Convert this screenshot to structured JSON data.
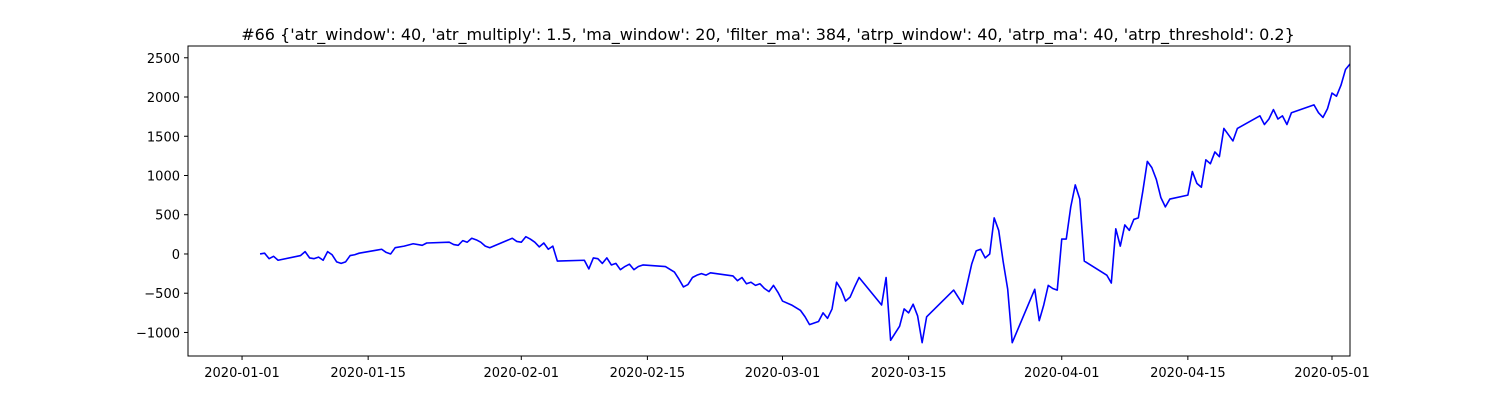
{
  "chart_data": {
    "type": "line",
    "title": "#66 {'atr_window': 40, 'atr_multiply': 1.5, 'ma_window': 20, 'filter_ma': 384, 'atrp_window': 40, 'atrp_ma': 40, 'atrp_threshold': 0.2}",
    "xlabel": "",
    "ylabel": "",
    "x_type": "date",
    "xlim": [
      "2019-12-26",
      "2020-05-03"
    ],
    "ylim": [
      -1300,
      2650
    ],
    "x_ticks": [
      "2020-01-01",
      "2020-01-15",
      "2020-02-01",
      "2020-02-15",
      "2020-03-01",
      "2020-03-15",
      "2020-04-01",
      "2020-04-15",
      "2020-05-01"
    ],
    "y_ticks": [
      -1000,
      -500,
      0,
      500,
      1000,
      1500,
      2000,
      2500
    ],
    "grid": false,
    "legend": "none",
    "series": [
      {
        "color": "#0000ff",
        "points": [
          [
            "2020-01-03",
            0
          ],
          [
            "2020-01-03 12:00",
            10
          ],
          [
            "2020-01-04",
            -60
          ],
          [
            "2020-01-04 12:00",
            -30
          ],
          [
            "2020-01-05",
            -80
          ],
          [
            "2020-01-07 12:00",
            -20
          ],
          [
            "2020-01-08",
            30
          ],
          [
            "2020-01-08 12:00",
            -50
          ],
          [
            "2020-01-09",
            -60
          ],
          [
            "2020-01-09 12:00",
            -40
          ],
          [
            "2020-01-10",
            -80
          ],
          [
            "2020-01-10 12:00",
            30
          ],
          [
            "2020-01-11",
            -10
          ],
          [
            "2020-01-11 12:00",
            -100
          ],
          [
            "2020-01-12",
            -120
          ],
          [
            "2020-01-12 12:00",
            -100
          ],
          [
            "2020-01-13",
            -20
          ],
          [
            "2020-01-13 12:00",
            -10
          ],
          [
            "2020-01-14",
            10
          ],
          [
            "2020-01-16",
            50
          ],
          [
            "2020-01-16 12:00",
            60
          ],
          [
            "2020-01-17",
            20
          ],
          [
            "2020-01-17 12:00",
            0
          ],
          [
            "2020-01-18",
            80
          ],
          [
            "2020-01-19",
            100
          ],
          [
            "2020-01-20",
            130
          ],
          [
            "2020-01-21",
            110
          ],
          [
            "2020-01-21 12:00",
            140
          ],
          [
            "2020-01-24",
            150
          ],
          [
            "2020-01-24 12:00",
            120
          ],
          [
            "2020-01-25",
            110
          ],
          [
            "2020-01-25 12:00",
            170
          ],
          [
            "2020-01-26",
            150
          ],
          [
            "2020-01-26 12:00",
            200
          ],
          [
            "2020-01-27",
            180
          ],
          [
            "2020-01-27 12:00",
            150
          ],
          [
            "2020-01-28",
            100
          ],
          [
            "2020-01-28 12:00",
            80
          ],
          [
            "2020-01-31",
            200
          ],
          [
            "2020-01-31 12:00",
            160
          ],
          [
            "2020-02-01",
            150
          ],
          [
            "2020-02-01 12:00",
            220
          ],
          [
            "2020-02-02",
            190
          ],
          [
            "2020-02-02 12:00",
            150
          ],
          [
            "2020-02-03",
            90
          ],
          [
            "2020-02-03 12:00",
            140
          ],
          [
            "2020-02-04",
            60
          ],
          [
            "2020-02-04 12:00",
            100
          ],
          [
            "2020-02-05",
            -90
          ],
          [
            "2020-02-08",
            -80
          ],
          [
            "2020-02-08 12:00",
            -190
          ],
          [
            "2020-02-09",
            -50
          ],
          [
            "2020-02-09 12:00",
            -60
          ],
          [
            "2020-02-10",
            -120
          ],
          [
            "2020-02-10 12:00",
            -50
          ],
          [
            "2020-02-11",
            -140
          ],
          [
            "2020-02-11 12:00",
            -120
          ],
          [
            "2020-02-12",
            -200
          ],
          [
            "2020-02-12 12:00",
            -160
          ],
          [
            "2020-02-13",
            -130
          ],
          [
            "2020-02-13 12:00",
            -200
          ],
          [
            "2020-02-14",
            -160
          ],
          [
            "2020-02-14 12:00",
            -140
          ],
          [
            "2020-02-17",
            -160
          ],
          [
            "2020-02-18",
            -230
          ],
          [
            "2020-02-18 12:00",
            -320
          ],
          [
            "2020-02-19",
            -420
          ],
          [
            "2020-02-19 12:00",
            -390
          ],
          [
            "2020-02-20",
            -300
          ],
          [
            "2020-02-20 12:00",
            -270
          ],
          [
            "2020-02-21",
            -250
          ],
          [
            "2020-02-21 12:00",
            -270
          ],
          [
            "2020-02-22",
            -240
          ],
          [
            "2020-02-24 12:00",
            -280
          ],
          [
            "2020-02-25",
            -340
          ],
          [
            "2020-02-25 12:00",
            -300
          ],
          [
            "2020-02-26",
            -380
          ],
          [
            "2020-02-26 12:00",
            -360
          ],
          [
            "2020-02-27",
            -400
          ],
          [
            "2020-02-27 12:00",
            -380
          ],
          [
            "2020-02-28",
            -440
          ],
          [
            "2020-02-28 12:00",
            -480
          ],
          [
            "2020-02-29",
            -400
          ],
          [
            "2020-02-29 12:00",
            -490
          ],
          [
            "2020-03-01",
            -600
          ],
          [
            "2020-03-02",
            -650
          ],
          [
            "2020-03-03",
            -720
          ],
          [
            "2020-03-03 12:00",
            -800
          ],
          [
            "2020-03-04",
            -900
          ],
          [
            "2020-03-05",
            -860
          ],
          [
            "2020-03-05 12:00",
            -750
          ],
          [
            "2020-03-06",
            -820
          ],
          [
            "2020-03-06 12:00",
            -700
          ],
          [
            "2020-03-07",
            -360
          ],
          [
            "2020-03-07 12:00",
            -450
          ],
          [
            "2020-03-08",
            -600
          ],
          [
            "2020-03-08 12:00",
            -550
          ],
          [
            "2020-03-09",
            -420
          ],
          [
            "2020-03-09 12:00",
            -300
          ],
          [
            "2020-03-12",
            -650
          ],
          [
            "2020-03-12 12:00",
            -300
          ],
          [
            "2020-03-13",
            -1100
          ],
          [
            "2020-03-14",
            -920
          ],
          [
            "2020-03-14 12:00",
            -700
          ],
          [
            "2020-03-15",
            -750
          ],
          [
            "2020-03-15 12:00",
            -640
          ],
          [
            "2020-03-16",
            -790
          ],
          [
            "2020-03-16 12:00",
            -1130
          ],
          [
            "2020-03-17",
            -800
          ],
          [
            "2020-03-20",
            -460
          ],
          [
            "2020-03-21",
            -640
          ],
          [
            "2020-03-22",
            -130
          ],
          [
            "2020-03-22 12:00",
            40
          ],
          [
            "2020-03-23",
            60
          ],
          [
            "2020-03-23 12:00",
            -50
          ],
          [
            "2020-03-24",
            0
          ],
          [
            "2020-03-24 12:00",
            460
          ],
          [
            "2020-03-25",
            300
          ],
          [
            "2020-03-25 12:00",
            -100
          ],
          [
            "2020-03-26",
            -450
          ],
          [
            "2020-03-26 12:00",
            -1130
          ],
          [
            "2020-03-29",
            -450
          ],
          [
            "2020-03-29 12:00",
            -850
          ],
          [
            "2020-03-30",
            -650
          ],
          [
            "2020-03-30 12:00",
            -400
          ],
          [
            "2020-03-31",
            -440
          ],
          [
            "2020-03-31 12:00",
            -460
          ],
          [
            "2020-04-01",
            190
          ],
          [
            "2020-04-01 12:00",
            190
          ],
          [
            "2020-04-02",
            600
          ],
          [
            "2020-04-02 12:00",
            880
          ],
          [
            "2020-04-03",
            700
          ],
          [
            "2020-04-03 12:00",
            -90
          ],
          [
            "2020-04-06",
            -270
          ],
          [
            "2020-04-06 12:00",
            -370
          ],
          [
            "2020-04-07",
            320
          ],
          [
            "2020-04-07 12:00",
            100
          ],
          [
            "2020-04-08",
            370
          ],
          [
            "2020-04-08 12:00",
            300
          ],
          [
            "2020-04-09",
            440
          ],
          [
            "2020-04-09 12:00",
            460
          ],
          [
            "2020-04-10",
            800
          ],
          [
            "2020-04-10 12:00",
            1180
          ],
          [
            "2020-04-11",
            1100
          ],
          [
            "2020-04-11 12:00",
            950
          ],
          [
            "2020-04-12",
            720
          ],
          [
            "2020-04-12 12:00",
            600
          ],
          [
            "2020-04-13",
            700
          ],
          [
            "2020-04-15",
            750
          ],
          [
            "2020-04-15 12:00",
            1050
          ],
          [
            "2020-04-16",
            900
          ],
          [
            "2020-04-16 12:00",
            850
          ],
          [
            "2020-04-17",
            1200
          ],
          [
            "2020-04-17 12:00",
            1150
          ],
          [
            "2020-04-18",
            1300
          ],
          [
            "2020-04-18 12:00",
            1240
          ],
          [
            "2020-04-19",
            1600
          ],
          [
            "2020-04-19 12:00",
            1520
          ],
          [
            "2020-04-20",
            1440
          ],
          [
            "2020-04-20 12:00",
            1600
          ],
          [
            "2020-04-23",
            1760
          ],
          [
            "2020-04-23 12:00",
            1650
          ],
          [
            "2020-04-24",
            1720
          ],
          [
            "2020-04-24 12:00",
            1840
          ],
          [
            "2020-04-25",
            1720
          ],
          [
            "2020-04-25 12:00",
            1760
          ],
          [
            "2020-04-26",
            1650
          ],
          [
            "2020-04-26 12:00",
            1800
          ],
          [
            "2020-04-29",
            1900
          ],
          [
            "2020-04-29 12:00",
            1800
          ],
          [
            "2020-04-30",
            1740
          ],
          [
            "2020-04-30 12:00",
            1850
          ],
          [
            "2020-05-01",
            2050
          ],
          [
            "2020-05-01 12:00",
            2010
          ],
          [
            "2020-05-02",
            2150
          ],
          [
            "2020-05-02 12:00",
            2350
          ],
          [
            "2020-05-03",
            2420
          ]
        ]
      }
    ]
  }
}
